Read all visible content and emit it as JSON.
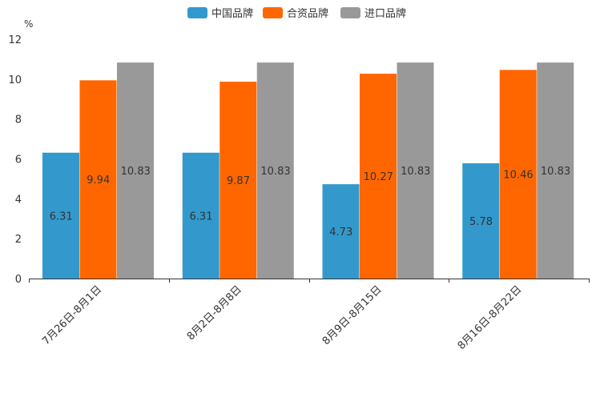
{
  "chart_data": {
    "type": "bar",
    "title": "",
    "ylabel": "%",
    "xlabel": "",
    "ylim": [
      0,
      12
    ],
    "yticks": [
      0,
      2,
      4,
      6,
      8,
      10,
      12
    ],
    "categories": [
      "7月26日-8月1日",
      "8月2日-8月8日",
      "8月9日-8月15日",
      "8月16日-8月22日"
    ],
    "series": [
      {
        "name": "中国品牌",
        "color": "#3399cc",
        "values": [
          6.31,
          6.31,
          4.73,
          5.78
        ]
      },
      {
        "name": "合资品牌",
        "color": "#ff6600",
        "values": [
          9.94,
          9.87,
          10.27,
          10.46
        ]
      },
      {
        "name": "进口品牌",
        "color": "#999999",
        "values": [
          10.83,
          10.83,
          10.83,
          10.83
        ]
      }
    ],
    "legend_position": "top-center",
    "grid": false
  }
}
